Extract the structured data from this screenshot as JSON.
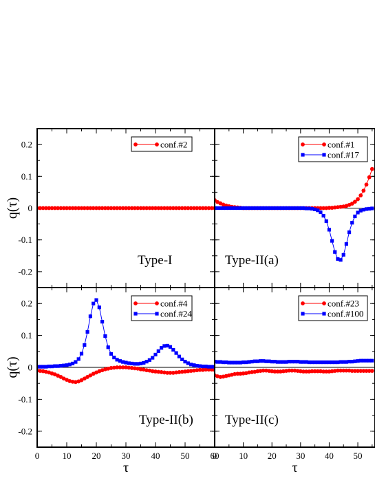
{
  "chart_data": [
    {
      "type": "line",
      "panel_label": "Type-I",
      "ylabel": "q(τ)",
      "xlabel": "",
      "xlim": [
        0,
        60
      ],
      "ylim": [
        -0.25,
        0.25
      ],
      "yticks": [
        "0.2",
        "0.1",
        "0",
        "-0.1",
        "-0.2"
      ],
      "xticks": [],
      "legend": "top-right",
      "series": [
        {
          "name": "conf.#2",
          "color": "#ff0000",
          "marker": "circle",
          "x": [
            0,
            1,
            2,
            3,
            4,
            5,
            6,
            7,
            8,
            9,
            10,
            11,
            12,
            13,
            14,
            15,
            16,
            17,
            18,
            19,
            20,
            21,
            22,
            23,
            24,
            25,
            26,
            27,
            28,
            29,
            30,
            31,
            32,
            33,
            34,
            35,
            36,
            37,
            38,
            39,
            40,
            41,
            42,
            43,
            44,
            45,
            46,
            47,
            48,
            49,
            50,
            51,
            52,
            53,
            54,
            55,
            56,
            57,
            58,
            59,
            60
          ],
          "y": [
            0,
            0,
            0,
            0,
            0,
            0,
            0,
            0,
            0,
            0,
            0,
            0,
            0,
            0,
            0,
            0,
            0,
            0,
            0,
            0,
            0,
            0,
            0,
            0,
            0,
            0,
            0,
            0,
            0,
            0,
            0,
            0,
            0,
            0,
            0,
            0,
            0,
            0,
            0,
            0,
            0,
            0,
            0,
            0,
            0,
            0,
            0,
            0,
            0,
            0,
            0,
            0,
            0,
            0,
            0,
            0,
            0,
            0,
            0,
            0,
            0
          ]
        }
      ]
    },
    {
      "type": "line",
      "panel_label": "Type-II(a)",
      "xlabel": "",
      "xlim": [
        0,
        56
      ],
      "ylim": [
        -0.25,
        0.25
      ],
      "xticks": [],
      "legend": "top-right",
      "series": [
        {
          "name": "conf.#1",
          "color": "#ff0000",
          "marker": "circle",
          "x": [
            0,
            1,
            2,
            3,
            4,
            5,
            6,
            7,
            8,
            9,
            10,
            11,
            12,
            13,
            14,
            15,
            16,
            17,
            18,
            19,
            20,
            21,
            22,
            23,
            24,
            25,
            26,
            27,
            28,
            29,
            30,
            31,
            32,
            33,
            34,
            35,
            36,
            37,
            38,
            39,
            40,
            41,
            42,
            43,
            44,
            45,
            46,
            47,
            48,
            49,
            50,
            51,
            52,
            53,
            54,
            55
          ],
          "y": [
            0.025,
            0.019,
            0.015,
            0.011,
            0.008,
            0.006,
            0.004,
            0.003,
            0.002,
            0.001,
            0,
            0,
            0,
            0,
            0,
            0,
            0,
            0,
            0,
            0,
            0,
            0,
            0,
            0,
            0,
            0,
            0,
            0,
            0,
            0,
            0,
            0,
            0,
            0,
            0,
            0,
            0,
            0,
            0,
            0,
            0.001,
            0.001,
            0.002,
            0.003,
            0.004,
            0.005,
            0.007,
            0.01,
            0.014,
            0.02,
            0.028,
            0.04,
            0.055,
            0.074,
            0.097,
            0.123
          ]
        },
        {
          "name": "conf.#17",
          "color": "#0000ff",
          "marker": "square",
          "x": [
            0,
            1,
            2,
            3,
            4,
            5,
            6,
            7,
            8,
            9,
            10,
            11,
            12,
            13,
            14,
            15,
            16,
            17,
            18,
            19,
            20,
            21,
            22,
            23,
            24,
            25,
            26,
            27,
            28,
            29,
            30,
            31,
            32,
            33,
            34,
            35,
            36,
            37,
            38,
            39,
            40,
            41,
            42,
            43,
            44,
            45,
            46,
            47,
            48,
            49,
            50,
            51,
            52,
            53,
            54,
            55
          ],
          "y": [
            0,
            0,
            0,
            0,
            0,
            0,
            0,
            0,
            0,
            0,
            0,
            0,
            0,
            0,
            0,
            0,
            0,
            0,
            0,
            0,
            0,
            0,
            0,
            0,
            0,
            0,
            0,
            0,
            0,
            0,
            0,
            0,
            -0.001,
            -0.001,
            -0.002,
            -0.004,
            -0.007,
            -0.013,
            -0.024,
            -0.041,
            -0.068,
            -0.103,
            -0.138,
            -0.16,
            -0.163,
            -0.147,
            -0.113,
            -0.076,
            -0.046,
            -0.026,
            -0.014,
            -0.008,
            -0.005,
            -0.003,
            -0.002,
            -0.001
          ]
        }
      ]
    },
    {
      "type": "line",
      "panel_label": "Type-II(b)",
      "ylabel": "q(τ)",
      "xlabel": "τ",
      "xlim": [
        0,
        60
      ],
      "ylim": [
        -0.25,
        0.25
      ],
      "yticks": [
        "0.2",
        "0.1",
        "0",
        "-0.1",
        "-0.2"
      ],
      "xticks": [
        "0",
        "10",
        "20",
        "30",
        "40",
        "50",
        "60"
      ],
      "legend": "top-right",
      "series": [
        {
          "name": "conf.#4",
          "color": "#ff0000",
          "marker": "circle",
          "x": [
            0,
            1,
            2,
            3,
            4,
            5,
            6,
            7,
            8,
            9,
            10,
            11,
            12,
            13,
            14,
            15,
            16,
            17,
            18,
            19,
            20,
            21,
            22,
            23,
            24,
            25,
            26,
            27,
            28,
            29,
            30,
            31,
            32,
            33,
            34,
            35,
            36,
            37,
            38,
            39,
            40,
            41,
            42,
            43,
            44,
            45,
            46,
            47,
            48,
            49,
            50,
            51,
            52,
            53,
            54,
            55,
            56,
            57,
            58,
            59,
            60
          ],
          "y": [
            -0.01,
            -0.011,
            -0.012,
            -0.014,
            -0.016,
            -0.019,
            -0.022,
            -0.026,
            -0.03,
            -0.035,
            -0.039,
            -0.043,
            -0.045,
            -0.046,
            -0.044,
            -0.04,
            -0.035,
            -0.03,
            -0.025,
            -0.02,
            -0.016,
            -0.012,
            -0.009,
            -0.006,
            -0.004,
            -0.002,
            -0.001,
            0,
            0,
            0,
            0,
            -0.001,
            -0.002,
            -0.003,
            -0.004,
            -0.006,
            -0.007,
            -0.009,
            -0.01,
            -0.012,
            -0.013,
            -0.014,
            -0.015,
            -0.016,
            -0.017,
            -0.017,
            -0.017,
            -0.016,
            -0.015,
            -0.014,
            -0.013,
            -0.012,
            -0.011,
            -0.01,
            -0.009,
            -0.008,
            -0.008,
            -0.007,
            -0.007,
            -0.007,
            -0.008
          ]
        },
        {
          "name": "conf.#24",
          "color": "#0000ff",
          "marker": "square",
          "x": [
            0,
            1,
            2,
            3,
            4,
            5,
            6,
            7,
            8,
            9,
            10,
            11,
            12,
            13,
            14,
            15,
            16,
            17,
            18,
            19,
            20,
            21,
            22,
            23,
            24,
            25,
            26,
            27,
            28,
            29,
            30,
            31,
            32,
            33,
            34,
            35,
            36,
            37,
            38,
            39,
            40,
            41,
            42,
            43,
            44,
            45,
            46,
            47,
            48,
            49,
            50,
            51,
            52,
            53,
            54,
            55,
            56,
            57,
            58,
            59,
            60
          ],
          "y": [
            0.002,
            0.002,
            0.002,
            0.002,
            0.003,
            0.003,
            0.004,
            0.004,
            0.005,
            0.006,
            0.007,
            0.009,
            0.012,
            0.017,
            0.026,
            0.043,
            0.07,
            0.111,
            0.16,
            0.2,
            0.211,
            0.188,
            0.143,
            0.098,
            0.063,
            0.042,
            0.031,
            0.024,
            0.02,
            0.017,
            0.015,
            0.013,
            0.012,
            0.011,
            0.011,
            0.012,
            0.014,
            0.018,
            0.023,
            0.03,
            0.04,
            0.051,
            0.061,
            0.067,
            0.068,
            0.064,
            0.055,
            0.045,
            0.034,
            0.025,
            0.018,
            0.013,
            0.009,
            0.007,
            0.005,
            0.004,
            0.003,
            0.003,
            0.002,
            0.002,
            0.002
          ]
        }
      ]
    },
    {
      "type": "line",
      "panel_label": "Type-II(c)",
      "xlabel": "τ",
      "xlim": [
        0,
        56
      ],
      "ylim": [
        -0.25,
        0.25
      ],
      "xticks": [
        "0",
        "10",
        "20",
        "30",
        "40",
        "50"
      ],
      "legend": "top-right",
      "series": [
        {
          "name": "conf.#23",
          "color": "#ff0000",
          "marker": "circle",
          "x": [
            0,
            1,
            2,
            3,
            4,
            5,
            6,
            7,
            8,
            9,
            10,
            11,
            12,
            13,
            14,
            15,
            16,
            17,
            18,
            19,
            20,
            21,
            22,
            23,
            24,
            25,
            26,
            27,
            28,
            29,
            30,
            31,
            32,
            33,
            34,
            35,
            36,
            37,
            38,
            39,
            40,
            41,
            42,
            43,
            44,
            45,
            46,
            47,
            48,
            49,
            50,
            51,
            52,
            53,
            54,
            55
          ],
          "y": [
            -0.025,
            -0.028,
            -0.03,
            -0.029,
            -0.027,
            -0.025,
            -0.023,
            -0.021,
            -0.02,
            -0.02,
            -0.019,
            -0.018,
            -0.016,
            -0.015,
            -0.014,
            -0.012,
            -0.011,
            -0.01,
            -0.01,
            -0.011,
            -0.012,
            -0.013,
            -0.013,
            -0.013,
            -0.012,
            -0.011,
            -0.01,
            -0.01,
            -0.01,
            -0.011,
            -0.012,
            -0.013,
            -0.013,
            -0.013,
            -0.012,
            -0.012,
            -0.012,
            -0.012,
            -0.013,
            -0.013,
            -0.013,
            -0.012,
            -0.011,
            -0.01,
            -0.01,
            -0.01,
            -0.01,
            -0.01,
            -0.011,
            -0.011,
            -0.011,
            -0.011,
            -0.011,
            -0.011,
            -0.011,
            -0.011
          ]
        },
        {
          "name": "conf.#100",
          "color": "#0000ff",
          "marker": "square",
          "x": [
            0,
            1,
            2,
            3,
            4,
            5,
            6,
            7,
            8,
            9,
            10,
            11,
            12,
            13,
            14,
            15,
            16,
            17,
            18,
            19,
            20,
            21,
            22,
            23,
            24,
            25,
            26,
            27,
            28,
            29,
            30,
            31,
            32,
            33,
            34,
            35,
            36,
            37,
            38,
            39,
            40,
            41,
            42,
            43,
            44,
            45,
            46,
            47,
            48,
            49,
            50,
            51,
            52,
            53,
            54,
            55
          ],
          "y": [
            0.018,
            0.017,
            0.017,
            0.016,
            0.016,
            0.015,
            0.015,
            0.015,
            0.015,
            0.015,
            0.016,
            0.016,
            0.017,
            0.018,
            0.019,
            0.019,
            0.02,
            0.02,
            0.019,
            0.019,
            0.018,
            0.018,
            0.017,
            0.017,
            0.017,
            0.017,
            0.018,
            0.018,
            0.018,
            0.018,
            0.017,
            0.017,
            0.017,
            0.016,
            0.016,
            0.016,
            0.016,
            0.016,
            0.016,
            0.016,
            0.016,
            0.016,
            0.016,
            0.016,
            0.017,
            0.017,
            0.017,
            0.018,
            0.018,
            0.019,
            0.02,
            0.021,
            0.021,
            0.021,
            0.021,
            0.021
          ]
        }
      ]
    }
  ]
}
